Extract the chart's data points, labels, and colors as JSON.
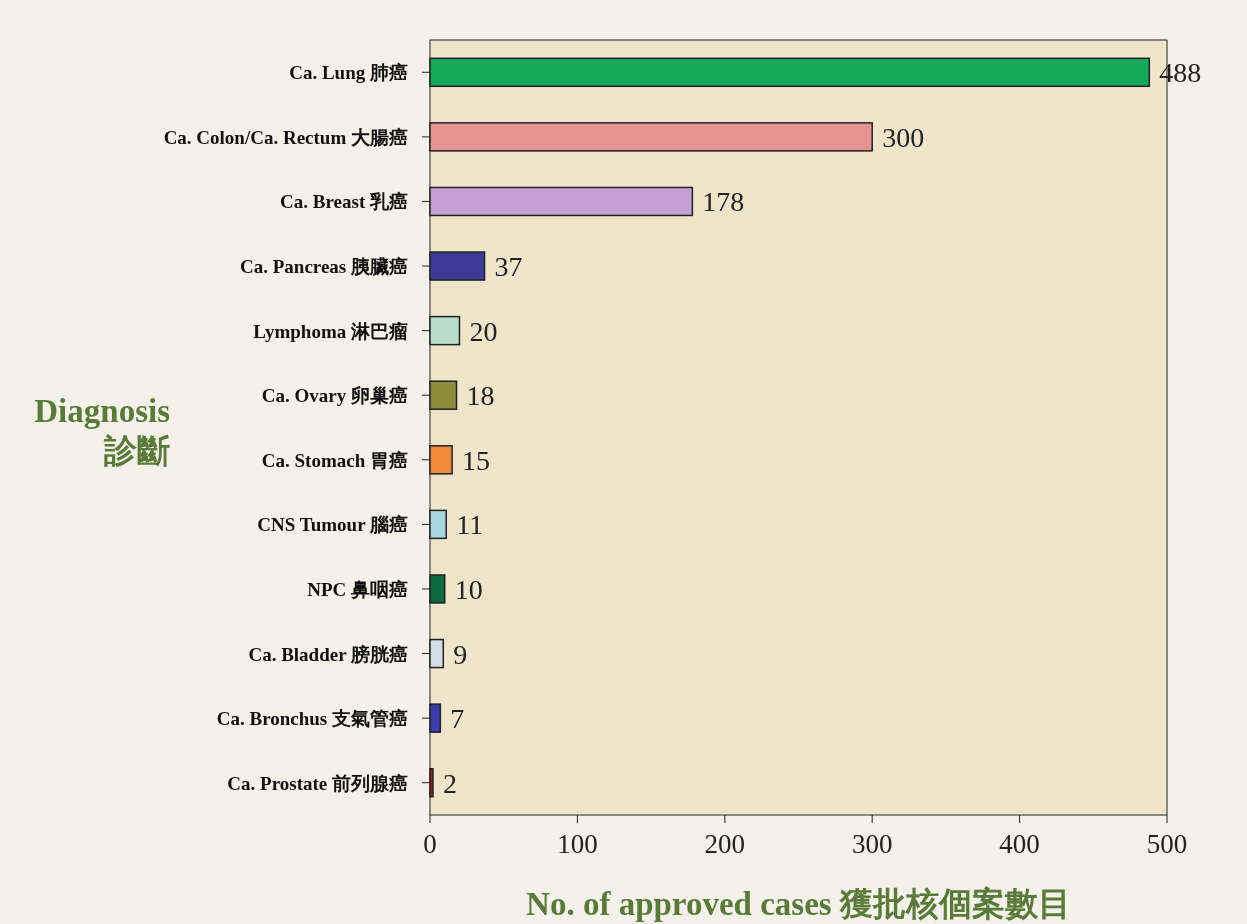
{
  "chart_data": {
    "type": "bar",
    "orientation": "horizontal",
    "xlabel": "No. of approved cases 獲批核個案數目",
    "ylabel": "Diagnosis 診斷",
    "categories": [
      "Ca. Lung 肺癌",
      "Ca. Colon/Ca. Rectum 大腸癌",
      "Ca. Breast 乳癌",
      "Ca. Pancreas 胰臟癌",
      "Lymphoma 淋巴瘤",
      "Ca. Ovary 卵巢癌",
      "Ca. Stomach 胃癌",
      "CNS Tumour 腦癌",
      "NPC 鼻咽癌",
      "Ca. Bladder 膀胱癌",
      "Ca. Bronchus 支氣管癌",
      "Ca. Prostate 前列腺癌"
    ],
    "values": [
      488,
      300,
      178,
      37,
      20,
      18,
      15,
      11,
      10,
      9,
      7,
      2
    ],
    "colors": [
      "#14a85a",
      "#e89494",
      "#c4a0d4",
      "#3c3c96",
      "#b8dccc",
      "#8c8c3c",
      "#f08c3c",
      "#a8d4e0",
      "#0c6a3c",
      "#d4dce4",
      "#3c3cac",
      "#8c2424"
    ],
    "xlim": [
      0,
      500
    ],
    "xticks": [
      0,
      100,
      200,
      300,
      400,
      500
    ],
    "data_labels": true,
    "grid": false
  }
}
